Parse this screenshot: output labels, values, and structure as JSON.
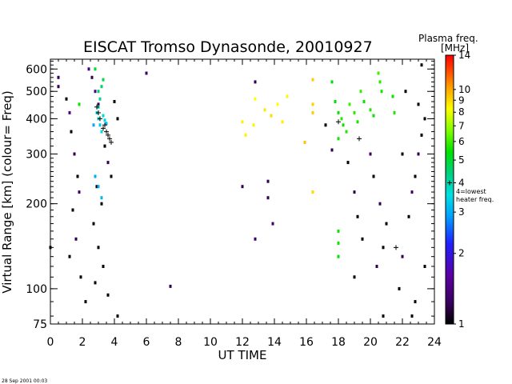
{
  "footer_text": "28 Sep 2001 00:03",
  "chart_data": {
    "type": "scatter",
    "title": "EISCAT Tromso Dynasonde,  20010927",
    "xlabel": "UT TIME",
    "ylabel": "Virtual Range [km]   (colour= Freq)",
    "xlim": [
      0,
      24
    ],
    "ylim": [
      75,
      650
    ],
    "yscale": "log",
    "xticks": [
      "0",
      "2",
      "4",
      "6",
      "8",
      "10",
      "12",
      "14",
      "16",
      "18",
      "20",
      "22",
      "24"
    ],
    "yticks": [
      "75",
      "100",
      "200",
      "300",
      "400",
      "500",
      "600"
    ],
    "grid": false,
    "colorbar": {
      "title": "Plasma freq.",
      "unit": "[MHz]",
      "ticks": [
        "1",
        "2",
        "3",
        "4",
        "5",
        "6",
        "7",
        "8",
        "9",
        "10",
        "14"
      ],
      "scale": "log",
      "range": [
        1,
        14
      ],
      "marker_label_1": "4=lowest",
      "marker_label_2": "heater freq."
    },
    "series": [
      {
        "name": "",
        "points": [
          {
            "x": 0.5,
            "y": 560,
            "f": 1.2
          },
          {
            "x": 0.5,
            "y": 520,
            "f": 1.2
          },
          {
            "x": 1.0,
            "y": 470,
            "f": 1.0
          },
          {
            "x": 1.2,
            "y": 420,
            "f": 1.5
          },
          {
            "x": 1.3,
            "y": 360,
            "f": 1.0
          },
          {
            "x": 1.5,
            "y": 300,
            "f": 1.2
          },
          {
            "x": 1.7,
            "y": 250,
            "f": 1.0
          },
          {
            "x": 1.8,
            "y": 220,
            "f": 1.3
          },
          {
            "x": 1.4,
            "y": 190,
            "f": 1.0
          },
          {
            "x": 1.6,
            "y": 150,
            "f": 1.2
          },
          {
            "x": 0.0,
            "y": 140,
            "f": 1.0
          },
          {
            "x": 1.2,
            "y": 130,
            "f": 1.0
          },
          {
            "x": 1.9,
            "y": 110,
            "f": 1.0
          },
          {
            "x": 2.2,
            "y": 90,
            "f": 1.0
          },
          {
            "x": 2.4,
            "y": 600,
            "f": 1.4
          },
          {
            "x": 2.6,
            "y": 560,
            "f": 1.2
          },
          {
            "x": 2.8,
            "y": 500,
            "f": 1.5
          },
          {
            "x": 3.0,
            "y": 450,
            "f": 1.2
          },
          {
            "x": 3.4,
            "y": 320,
            "f": 1.0
          },
          {
            "x": 3.6,
            "y": 280,
            "f": 1.2
          },
          {
            "x": 3.8,
            "y": 250,
            "f": 1.0
          },
          {
            "x": 2.9,
            "y": 230,
            "f": 1.0
          },
          {
            "x": 3.2,
            "y": 200,
            "f": 1.0
          },
          {
            "x": 2.7,
            "y": 170,
            "f": 1.0
          },
          {
            "x": 3.0,
            "y": 140,
            "f": 1.0
          },
          {
            "x": 3.3,
            "y": 120,
            "f": 1.0
          },
          {
            "x": 2.8,
            "y": 105,
            "f": 1.0
          },
          {
            "x": 3.6,
            "y": 95,
            "f": 1.0
          },
          {
            "x": 4.2,
            "y": 80,
            "f": 1.0
          },
          {
            "x": 4.0,
            "y": 460,
            "f": 1.0
          },
          {
            "x": 4.2,
            "y": 400,
            "f": 1.0
          },
          {
            "x": 2.9,
            "y": 420,
            "f": 3.5
          },
          {
            "x": 3.0,
            "y": 400,
            "f": 3.6
          },
          {
            "x": 3.1,
            "y": 380,
            "f": 3.3
          },
          {
            "x": 3.2,
            "y": 360,
            "f": 3.5
          },
          {
            "x": 3.0,
            "y": 440,
            "f": 4.0
          },
          {
            "x": 3.1,
            "y": 470,
            "f": 4.2
          },
          {
            "x": 3.2,
            "y": 520,
            "f": 4.5
          },
          {
            "x": 3.3,
            "y": 550,
            "f": 4.8
          },
          {
            "x": 2.8,
            "y": 600,
            "f": 5.0
          },
          {
            "x": 3.0,
            "y": 500,
            "f": 4.5
          },
          {
            "x": 3.3,
            "y": 410,
            "f": 3.8
          },
          {
            "x": 3.4,
            "y": 395,
            "f": 3.4
          },
          {
            "x": 3.5,
            "y": 385,
            "f": 3.2
          },
          {
            "x": 2.7,
            "y": 380,
            "f": 3.0
          },
          {
            "x": 3.0,
            "y": 230,
            "f": 3.0
          },
          {
            "x": 3.2,
            "y": 210,
            "f": 3.1
          },
          {
            "x": 2.8,
            "y": 250,
            "f": 3.0
          },
          {
            "x": 1.8,
            "y": 450,
            "f": 5.5
          },
          {
            "x": 7.5,
            "y": 102,
            "f": 1.2
          },
          {
            "x": 6.0,
            "y": 580,
            "f": 1.3
          },
          {
            "x": 12.0,
            "y": 230,
            "f": 1.2
          },
          {
            "x": 12.8,
            "y": 150,
            "f": 1.3
          },
          {
            "x": 12.8,
            "y": 540,
            "f": 1.2
          },
          {
            "x": 13.6,
            "y": 240,
            "f": 1.2
          },
          {
            "x": 13.6,
            "y": 210,
            "f": 1.2
          },
          {
            "x": 13.9,
            "y": 170,
            "f": 1.3
          },
          {
            "x": 12.0,
            "y": 390,
            "f": 8.5
          },
          {
            "x": 12.7,
            "y": 380,
            "f": 8.5
          },
          {
            "x": 13.4,
            "y": 430,
            "f": 8.7
          },
          {
            "x": 13.8,
            "y": 410,
            "f": 8.9
          },
          {
            "x": 14.2,
            "y": 450,
            "f": 8.3
          },
          {
            "x": 14.5,
            "y": 390,
            "f": 8.6
          },
          {
            "x": 12.8,
            "y": 470,
            "f": 8.2
          },
          {
            "x": 14.8,
            "y": 480,
            "f": 8.4
          },
          {
            "x": 12.2,
            "y": 350,
            "f": 8.5
          },
          {
            "x": 15.9,
            "y": 330,
            "f": 9.5
          },
          {
            "x": 16.4,
            "y": 550,
            "f": 9.3
          },
          {
            "x": 16.4,
            "y": 450,
            "f": 9.2
          },
          {
            "x": 16.4,
            "y": 420,
            "f": 9.3
          },
          {
            "x": 16.4,
            "y": 220,
            "f": 9.0
          },
          {
            "x": 18.0,
            "y": 420,
            "f": 5.5
          },
          {
            "x": 18.2,
            "y": 400,
            "f": 5.8
          },
          {
            "x": 18.3,
            "y": 380,
            "f": 5.5
          },
          {
            "x": 18.5,
            "y": 360,
            "f": 5.7
          },
          {
            "x": 18.0,
            "y": 340,
            "f": 5.6
          },
          {
            "x": 18.7,
            "y": 450,
            "f": 6.0
          },
          {
            "x": 19.0,
            "y": 420,
            "f": 5.8
          },
          {
            "x": 19.2,
            "y": 390,
            "f": 5.6
          },
          {
            "x": 19.4,
            "y": 500,
            "f": 5.9
          },
          {
            "x": 19.6,
            "y": 460,
            "f": 5.5
          },
          {
            "x": 20.0,
            "y": 430,
            "f": 5.7
          },
          {
            "x": 20.2,
            "y": 410,
            "f": 5.5
          },
          {
            "x": 20.5,
            "y": 580,
            "f": 6.0
          },
          {
            "x": 20.6,
            "y": 540,
            "f": 5.8
          },
          {
            "x": 20.7,
            "y": 500,
            "f": 5.6
          },
          {
            "x": 21.4,
            "y": 480,
            "f": 5.5
          },
          {
            "x": 21.5,
            "y": 420,
            "f": 5.7
          },
          {
            "x": 18.0,
            "y": 160,
            "f": 5.5
          },
          {
            "x": 18.0,
            "y": 145,
            "f": 5.6
          },
          {
            "x": 18.0,
            "y": 130,
            "f": 5.4
          },
          {
            "x": 17.6,
            "y": 540,
            "f": 5.3
          },
          {
            "x": 17.8,
            "y": 460,
            "f": 5.4
          },
          {
            "x": 17.2,
            "y": 380,
            "f": 1.0
          },
          {
            "x": 17.6,
            "y": 310,
            "f": 1.2
          },
          {
            "x": 18.6,
            "y": 280,
            "f": 1.0
          },
          {
            "x": 19.0,
            "y": 220,
            "f": 1.2
          },
          {
            "x": 19.2,
            "y": 180,
            "f": 1.0
          },
          {
            "x": 19.5,
            "y": 150,
            "f": 1.0
          },
          {
            "x": 19.0,
            "y": 110,
            "f": 1.0
          },
          {
            "x": 20.0,
            "y": 300,
            "f": 1.3
          },
          {
            "x": 20.2,
            "y": 250,
            "f": 1.0
          },
          {
            "x": 20.6,
            "y": 200,
            "f": 1.2
          },
          {
            "x": 21.0,
            "y": 170,
            "f": 1.0
          },
          {
            "x": 20.8,
            "y": 140,
            "f": 1.0
          },
          {
            "x": 20.4,
            "y": 120,
            "f": 1.2
          },
          {
            "x": 20.8,
            "y": 80,
            "f": 1.0
          },
          {
            "x": 21.8,
            "y": 100,
            "f": 1.0
          },
          {
            "x": 22.0,
            "y": 130,
            "f": 1.2
          },
          {
            "x": 22.4,
            "y": 180,
            "f": 1.0
          },
          {
            "x": 22.6,
            "y": 220,
            "f": 1.3
          },
          {
            "x": 22.8,
            "y": 250,
            "f": 1.0
          },
          {
            "x": 23.0,
            "y": 300,
            "f": 1.2
          },
          {
            "x": 23.2,
            "y": 350,
            "f": 1.0
          },
          {
            "x": 23.4,
            "y": 400,
            "f": 1.0
          },
          {
            "x": 23.0,
            "y": 450,
            "f": 1.0
          },
          {
            "x": 22.2,
            "y": 500,
            "f": 1.0
          },
          {
            "x": 23.2,
            "y": 620,
            "f": 1.0
          },
          {
            "x": 22.6,
            "y": 80,
            "f": 1.0
          },
          {
            "x": 23.4,
            "y": 120,
            "f": 1.0
          },
          {
            "x": 22.0,
            "y": 300,
            "f": 1.0
          },
          {
            "x": 22.8,
            "y": 90,
            "f": 1.0
          }
        ]
      }
    ],
    "markers_plus": [
      {
        "x": 3.5,
        "y": 360
      },
      {
        "x": 3.6,
        "y": 350
      },
      {
        "x": 3.7,
        "y": 340
      },
      {
        "x": 3.3,
        "y": 370
      },
      {
        "x": 3.8,
        "y": 330
      },
      {
        "x": 3.0,
        "y": 420
      },
      {
        "x": 2.9,
        "y": 440
      },
      {
        "x": 3.1,
        "y": 400
      },
      {
        "x": 3.4,
        "y": 380
      },
      {
        "x": 19.3,
        "y": 340
      },
      {
        "x": 21.6,
        "y": 140
      },
      {
        "x": 18.0,
        "y": 390
      }
    ]
  }
}
